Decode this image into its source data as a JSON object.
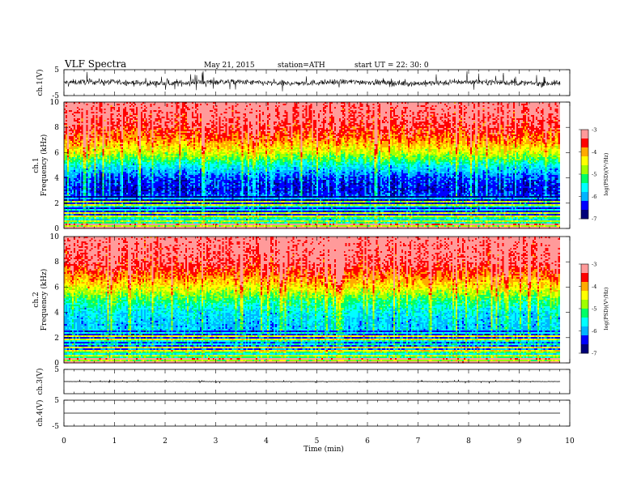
{
  "header": {
    "title": "VLF  Spectra",
    "date": "May 21, 2015",
    "station": "station=ATH",
    "start": "start  UT  =   22: 30: 0"
  },
  "colors": {
    "colormap": [
      "#00007a",
      "#0000ff",
      "#00b4ff",
      "#00ffff",
      "#00ff66",
      "#a0ff00",
      "#ffff00",
      "#ffaa00",
      "#ff0000",
      "#ff9a9a",
      "#ffffff"
    ]
  },
  "chart_data": [
    {
      "id": "ch1-waveform",
      "type": "line",
      "ylabel": "ch.1(V)",
      "ylim": [
        -5,
        5
      ],
      "yticks": [
        "5",
        "-5"
      ],
      "xlim": [
        0,
        10
      ],
      "description_level": 0.0,
      "noise_amplitude_v": 3
    },
    {
      "id": "ch1-spectrogram",
      "type": "heatmap",
      "ylabel": "ch.1\nFrequency  (kHz)",
      "ylabel_lines": [
        "ch.1",
        "Frequency  (kHz)"
      ],
      "ylim": [
        0,
        10
      ],
      "yticks": [
        "0",
        "2",
        "4",
        "6",
        "8",
        "10"
      ],
      "xlim": [
        0,
        10
      ],
      "colorbar": {
        "label": "log(PSD)(V²/Hz)",
        "range": [
          -7,
          -3
        ],
        "ticks": [
          "-3",
          "-4",
          "-5",
          "-6",
          "-7"
        ]
      },
      "frequency_profile_khz": [
        0,
        1,
        2,
        3,
        4,
        5,
        6,
        7,
        8,
        9,
        10
      ],
      "log_psd_profile": [
        -3.8,
        -5.8,
        -5.9,
        -6.5,
        -6.3,
        -5.6,
        -4.6,
        -3.9,
        -3.5,
        -3.3,
        -3.2
      ]
    },
    {
      "id": "ch2-spectrogram",
      "type": "heatmap",
      "ylabel": "ch.2\nFrequency  (kHz)",
      "ylabel_lines": [
        "ch.2",
        "Frequency  (kHz)"
      ],
      "ylim": [
        0,
        10
      ],
      "yticks": [
        "0",
        "2",
        "4",
        "6",
        "8",
        "10"
      ],
      "xlim": [
        0,
        10
      ],
      "colorbar": {
        "label": "log(PSD)(V²/Hz)",
        "range": [
          -7,
          -3
        ],
        "ticks": [
          "-3",
          "-4",
          "-5",
          "-6",
          "-7"
        ]
      },
      "frequency_profile_khz": [
        0,
        1,
        2,
        3,
        4,
        5,
        6,
        7,
        8,
        9,
        10
      ],
      "log_psd_profile": [
        -3.9,
        -5.6,
        -5.7,
        -5.9,
        -5.7,
        -5.2,
        -4.4,
        -3.8,
        -3.4,
        -3.3,
        -3.2
      ]
    },
    {
      "id": "ch3-waveform",
      "type": "line",
      "ylabel": "ch.3(V)",
      "ylim": [
        -5,
        5
      ],
      "yticks": [
        "5",
        ""
      ],
      "xlim": [
        0,
        10
      ],
      "level_v": 0.0,
      "noise_amplitude_v": 0.3
    },
    {
      "id": "ch4-waveform",
      "type": "line",
      "ylabel": "ch.4(V)",
      "ylim": [
        -5,
        5
      ],
      "yticks": [
        "5",
        "-5"
      ],
      "xlim": [
        0,
        10
      ],
      "level_v": 0.0,
      "noise_amplitude_v": 0.0
    }
  ],
  "xaxis": {
    "label": "Time  (min)",
    "ticks": [
      "0",
      "1",
      "2",
      "3",
      "4",
      "5",
      "6",
      "7",
      "8",
      "9",
      "10"
    ],
    "data_end_min": 9.8
  }
}
